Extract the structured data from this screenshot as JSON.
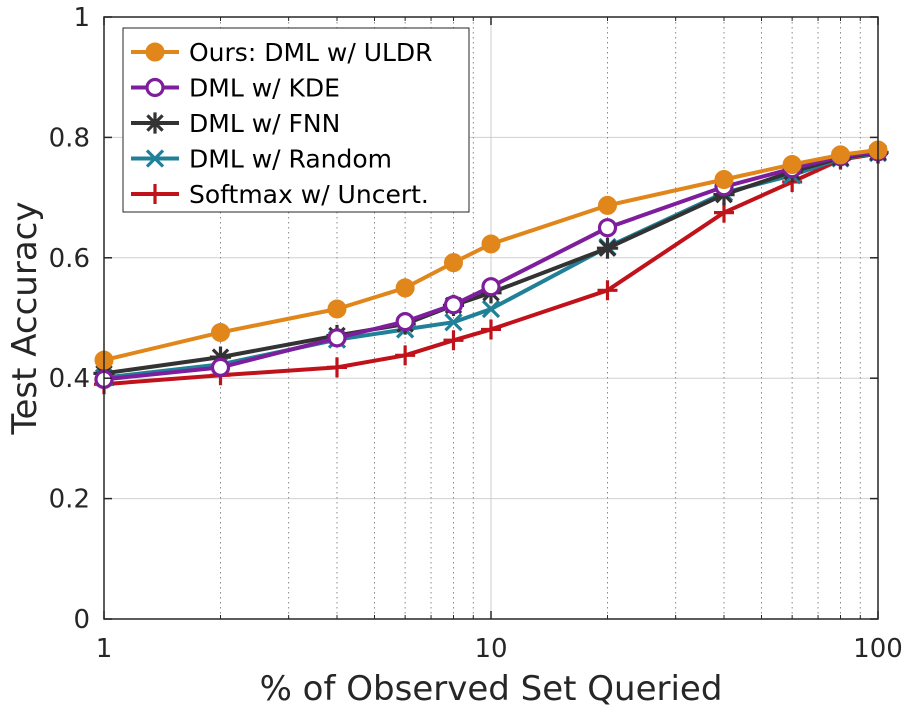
{
  "chart_data": {
    "type": "line",
    "xscale": "log",
    "xlabel": "% of Observed Set Queried",
    "ylabel": "Test Accuracy",
    "xlim": [
      1,
      100
    ],
    "ylim": [
      0,
      1
    ],
    "xticks": [
      1,
      10,
      100
    ],
    "xtick_labels": [
      "1",
      "10",
      "100"
    ],
    "yticks": [
      0,
      0.2,
      0.4,
      0.6,
      0.8,
      1
    ],
    "ytick_labels": [
      "0",
      "0.2",
      "0.4",
      "0.6",
      "0.8",
      "1"
    ],
    "grid": true,
    "legend_position": "top-left",
    "x": [
      1,
      2,
      4,
      6,
      8,
      10,
      20,
      40,
      60,
      80,
      100
    ],
    "series": [
      {
        "name": "Ours: DML w/ ULDR",
        "color": "#e0861a",
        "marker": "filled-circle",
        "values": [
          0.43,
          0.476,
          0.515,
          0.55,
          0.592,
          0.623,
          0.687,
          0.73,
          0.755,
          0.771,
          0.779
        ]
      },
      {
        "name": "DML w/ KDE",
        "color": "#7e1e9c",
        "marker": "open-circle",
        "values": [
          0.398,
          0.418,
          0.467,
          0.494,
          0.522,
          0.552,
          0.65,
          0.718,
          0.748,
          0.768,
          0.776
        ]
      },
      {
        "name": "DML w/ FNN",
        "color": "#333333",
        "marker": "asterisk",
        "values": [
          0.408,
          0.435,
          0.471,
          0.49,
          0.521,
          0.542,
          0.616,
          0.705,
          0.743,
          0.766,
          0.775
        ]
      },
      {
        "name": "DML w/ Random",
        "color": "#1f8098",
        "marker": "x",
        "values": [
          0.401,
          0.423,
          0.464,
          0.481,
          0.493,
          0.515,
          0.618,
          0.708,
          0.737,
          0.765,
          0.774
        ]
      },
      {
        "name": "Softmax w/ Uncert.",
        "color": "#c0121b",
        "marker": "plus",
        "values": [
          0.39,
          0.405,
          0.418,
          0.438,
          0.463,
          0.481,
          0.546,
          0.675,
          0.726,
          0.763,
          0.773
        ]
      }
    ]
  }
}
